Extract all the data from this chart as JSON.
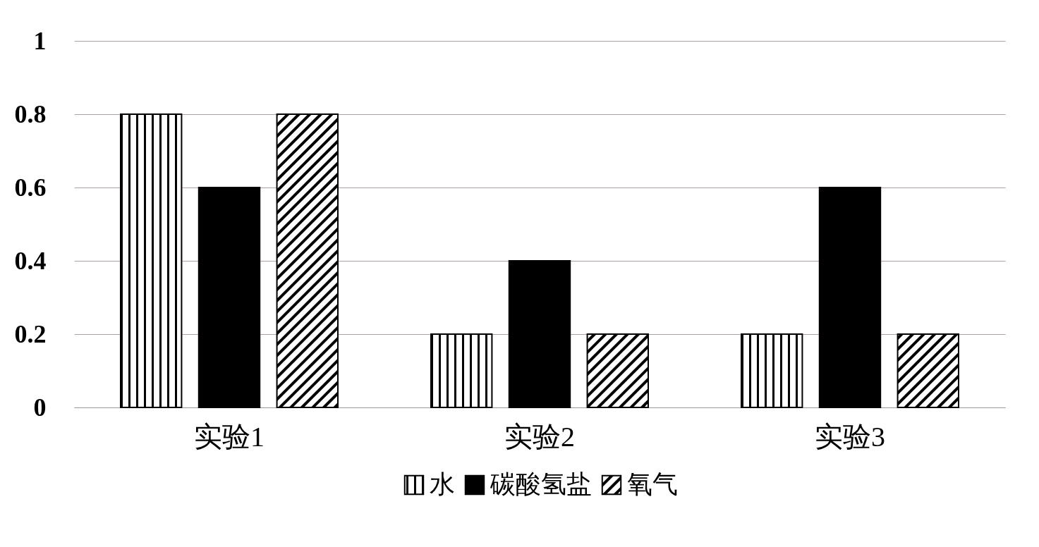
{
  "chart_data": {
    "type": "bar",
    "categories": [
      "实验1",
      "实验2",
      "实验3"
    ],
    "series": [
      {
        "name": "水",
        "color": "#000000",
        "values": [
          0.8,
          0.2,
          0.2
        ]
      },
      {
        "name": "碳酸氢盐",
        "color": "#000000",
        "values": [
          0.6,
          0.4,
          0.6
        ]
      },
      {
        "name": "氧气",
        "color": "#000000",
        "values": [
          0.8,
          0.2,
          0.2
        ]
      }
    ],
    "ylim": [
      0,
      1
    ],
    "yticks": [
      0,
      0.2,
      0.4,
      0.6,
      0.8,
      1
    ],
    "grid": "y",
    "legend": "bottom"
  }
}
